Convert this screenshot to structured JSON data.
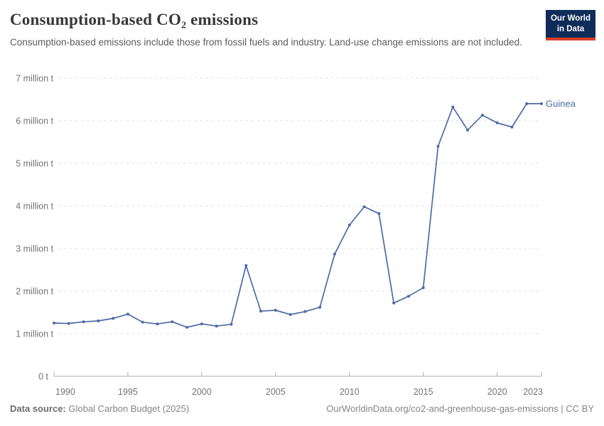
{
  "header": {
    "title": "Consumption-based CO₂ emissions",
    "subtitle": "Consumption-based emissions include those from fossil fuels and industry. Land-use change emissions are not included.",
    "logo": {
      "line1": "Our World",
      "line2": "in Data"
    }
  },
  "footer": {
    "source_label": "Data source:",
    "source_value": " Global Carbon Budget (2025)",
    "license": "OurWorldinData.org/co2-and-greenhouse-gas-emissions | CC BY"
  },
  "colors": {
    "line": "#4c6ba7",
    "logo_bg": "#102d59",
    "logo_red": "#dc3e2a",
    "grid": "#dddddd",
    "axis": "#adadad",
    "tick_text": "#737373"
  },
  "chart_data": {
    "type": "line",
    "title": "Consumption-based CO₂ emissions",
    "entity": "Guinea",
    "unit": "million t",
    "grid": true,
    "legend_position": "end-of-line-label",
    "xlim": [
      1990,
      2023
    ],
    "ylim": [
      0,
      7
    ],
    "x": [
      1990,
      1991,
      1992,
      1993,
      1994,
      1995,
      1996,
      1997,
      1998,
      1999,
      2000,
      2001,
      2002,
      2003,
      2004,
      2005,
      2006,
      2007,
      2008,
      2009,
      2010,
      2011,
      2012,
      2013,
      2014,
      2015,
      2016,
      2017,
      2018,
      2019,
      2020,
      2021,
      2022,
      2023
    ],
    "values": [
      1.25,
      1.24,
      1.28,
      1.3,
      1.36,
      1.46,
      1.27,
      1.23,
      1.28,
      1.15,
      1.23,
      1.18,
      1.22,
      2.6,
      1.53,
      1.55,
      1.45,
      1.52,
      1.62,
      2.87,
      3.55,
      3.98,
      3.82,
      1.72,
      1.88,
      2.08,
      5.4,
      6.32,
      5.78,
      6.13,
      5.95,
      5.85,
      6.4,
      6.4
    ],
    "y_ticks": [
      {
        "value": 0,
        "label": "0 t"
      },
      {
        "value": 1,
        "label": "1 million t"
      },
      {
        "value": 2,
        "label": "2 million t"
      },
      {
        "value": 3,
        "label": "3 million t"
      },
      {
        "value": 4,
        "label": "4 million t"
      },
      {
        "value": 5,
        "label": "5 million t"
      },
      {
        "value": 6,
        "label": "6 million t"
      },
      {
        "value": 7,
        "label": "7 million t"
      }
    ],
    "x_ticks": [
      {
        "year": 1990,
        "label": "1990"
      },
      {
        "year": 1995,
        "label": "1995"
      },
      {
        "year": 2000,
        "label": "2000"
      },
      {
        "year": 2005,
        "label": "2005"
      },
      {
        "year": 2010,
        "label": "2010"
      },
      {
        "year": 2015,
        "label": "2015"
      },
      {
        "year": 2020,
        "label": "2020"
      },
      {
        "year": 2023,
        "label": "2023"
      }
    ]
  }
}
